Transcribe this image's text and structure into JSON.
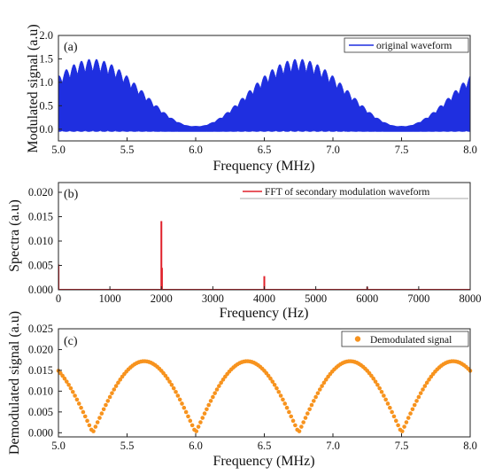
{
  "colors": {
    "blue": "#1f2fe0",
    "red": "#e0202a",
    "orange": "#f7931e",
    "axis": "#222222"
  },
  "chart_data": [
    {
      "type": "line",
      "panel_label": "(a)",
      "xlabel": "Frequency (MHz)",
      "ylabel": "Modulated signal (a.u)",
      "xlim": [
        5.0,
        8.0
      ],
      "ylim": [
        -0.25,
        2.0
      ],
      "xticks": [
        "5.0",
        "5.5",
        "6.0",
        "6.5",
        "7.0",
        "7.5",
        "8.0"
      ],
      "yticks": [
        "0.0",
        "0.5",
        "1.0",
        "1.5",
        "2.0"
      ],
      "legend": {
        "position": "top-right"
      },
      "series": [
        {
          "name": "original waveform",
          "color": "#1f2fe0",
          "description_points": {
            "x": [
              5.0,
              5.25,
              5.5,
              5.75,
              6.0,
              6.25,
              6.5,
              6.75,
              7.0,
              7.25,
              7.5,
              7.75,
              8.0
            ],
            "envelope_max": [
              1.25,
              1.5,
              1.32,
              0.62,
              0.05,
              0.62,
              1.3,
              1.5,
              1.32,
              0.62,
              0.05,
              0.62,
              1.2
            ]
          }
        }
      ]
    },
    {
      "type": "line",
      "panel_label": "(b)",
      "xlabel": "Frequency (Hz)",
      "ylabel": "Spectra (a.u)",
      "xlim": [
        0,
        8000
      ],
      "ylim": [
        0,
        0.022
      ],
      "xticks": [
        "0",
        "1000",
        "2000",
        "3000",
        "4000",
        "5000",
        "6000",
        "7000",
        "8000"
      ],
      "yticks": [
        "0.000",
        "0.005",
        "0.010",
        "0.015",
        "0.020"
      ],
      "legend": {
        "position": "top-right"
      },
      "series": [
        {
          "name": "FFT of secondary modulation waveform",
          "color": "#e0202a",
          "x": [
            2000,
            4000,
            6000
          ],
          "y": [
            0.0141,
            0.0028,
            0.0006
          ]
        }
      ]
    },
    {
      "type": "scatter",
      "panel_label": "(c)",
      "xlabel": "Frequency (MHz)",
      "ylabel": "Demodulated signal (a.u)",
      "xlim": [
        5.0,
        8.0
      ],
      "ylim": [
        -0.001,
        0.025
      ],
      "xticks": [
        "5.0",
        "5.5",
        "6.0",
        "6.5",
        "7.0",
        "7.5",
        "8.0"
      ],
      "yticks": [
        "0.000",
        "0.005",
        "0.010",
        "0.015",
        "0.020",
        "0.025"
      ],
      "legend": {
        "position": "top-right"
      },
      "series": [
        {
          "name": "Demodulated signal",
          "color": "#f7931e",
          "description_points": {
            "zeros_x": [
              5.25,
              6.0,
              6.75,
              7.5
            ],
            "peak_y": 0.0172,
            "period_mhz": 0.75,
            "x_start": 5.0,
            "x_end": 8.0
          }
        }
      ]
    }
  ]
}
